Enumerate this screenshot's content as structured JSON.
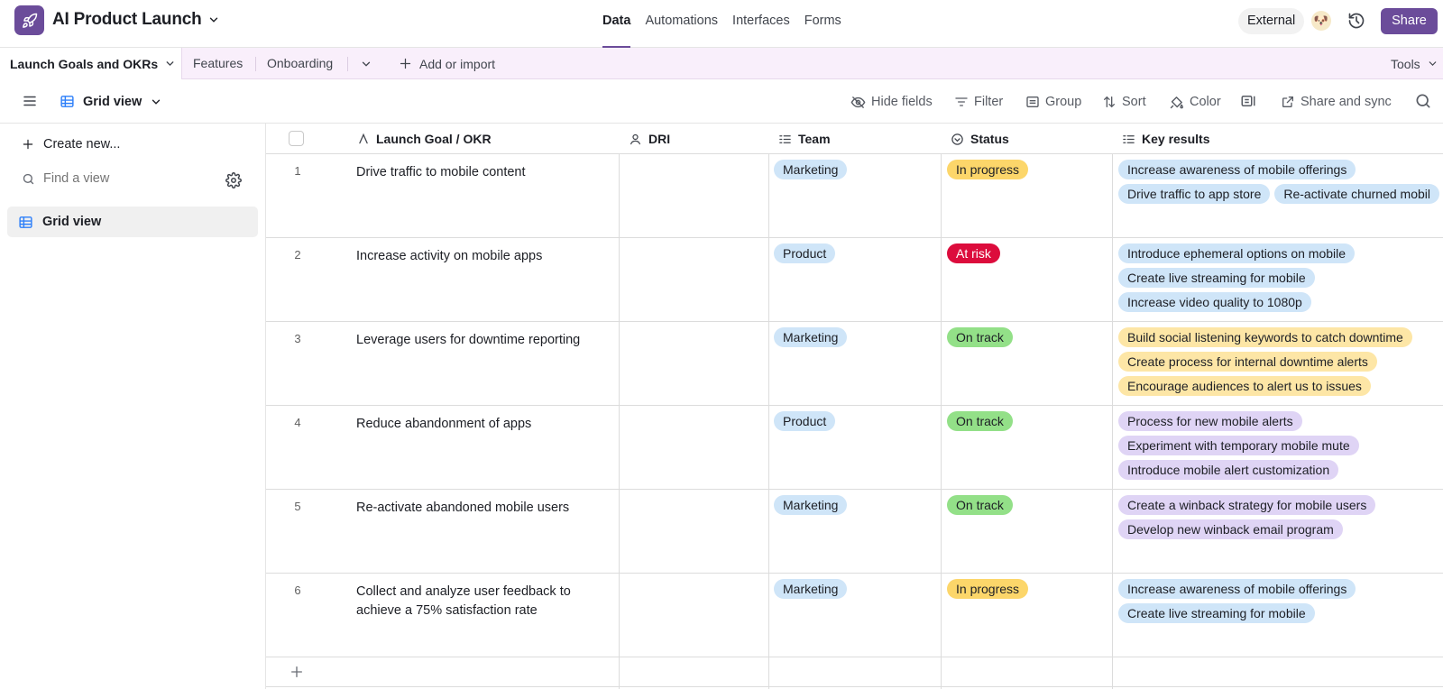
{
  "app": {
    "title": "AI Product Launch",
    "accent_color": "#6b4c9a",
    "nav_tabs": [
      {
        "label": "Data",
        "active": true
      },
      {
        "label": "Automations",
        "active": false
      },
      {
        "label": "Interfaces",
        "active": false
      },
      {
        "label": "Forms",
        "active": false
      }
    ],
    "external_label": "External",
    "share_label": "Share",
    "avatar_emoji": "🐶"
  },
  "tables": {
    "active": "Launch Goals and OKRs",
    "others": [
      "Features",
      "Onboarding"
    ],
    "add_import_label": "Add or import",
    "tools_label": "Tools"
  },
  "viewbar": {
    "view_name": "Grid view",
    "tools": {
      "hide_fields": "Hide fields",
      "filter": "Filter",
      "group": "Group",
      "sort": "Sort",
      "color": "Color",
      "share_sync": "Share and sync"
    }
  },
  "sidebar": {
    "create_new": "Create new...",
    "find_placeholder": "Find a view",
    "views": [
      "Grid view"
    ]
  },
  "grid": {
    "columns": {
      "goal": "Launch Goal / OKR",
      "dri": "DRI",
      "team": "Team",
      "status": "Status",
      "key_results": "Key results"
    },
    "status_colors": {
      "In progress": "#fcd66a",
      "At risk": "#dc0c3c",
      "On track": "#93e088"
    },
    "kr_colors": [
      "#cfe5f8",
      "#fde6a6",
      "#dfd4f5"
    ],
    "rows": [
      {
        "num": "1",
        "goal": "Drive traffic to mobile content",
        "dri": "",
        "team": "Marketing",
        "status": "In progress",
        "kr_color": 0,
        "key_results": [
          [
            "Increase awareness of mobile offerings"
          ],
          [
            "Drive traffic to app store",
            "Re-activate churned mobil"
          ]
        ]
      },
      {
        "num": "2",
        "goal": "Increase activity on mobile apps",
        "dri": "",
        "team": "Product",
        "status": "At risk",
        "kr_color": 0,
        "key_results": [
          [
            "Introduce ephemeral options on mobile"
          ],
          [
            "Create live streaming for mobile"
          ],
          [
            "Increase video quality to 1080p"
          ]
        ]
      },
      {
        "num": "3",
        "goal": "Leverage users for downtime reporting",
        "dri": "",
        "team": "Marketing",
        "status": "On track",
        "kr_color": 1,
        "key_results": [
          [
            "Build social listening keywords to catch downtime"
          ],
          [
            "Create process for internal downtime alerts"
          ],
          [
            "Encourage audiences to alert us to issues"
          ]
        ]
      },
      {
        "num": "4",
        "goal": "Reduce abandonment of apps",
        "dri": "",
        "team": "Product",
        "status": "On track",
        "kr_color": 2,
        "key_results": [
          [
            "Process for new mobile alerts"
          ],
          [
            "Experiment with temporary mobile mute"
          ],
          [
            "Introduce mobile alert customization"
          ]
        ]
      },
      {
        "num": "5",
        "goal": "Re-activate abandoned mobile users",
        "dri": "",
        "team": "Marketing",
        "status": "On track",
        "kr_color": 2,
        "key_results": [
          [
            "Create a winback strategy for mobile users"
          ],
          [
            "Develop new winback email program"
          ]
        ]
      },
      {
        "num": "6",
        "goal": "Collect and analyze user feedback to achieve a 75% satisfaction rate",
        "dri": "",
        "team": "Marketing",
        "status": "In progress",
        "kr_color": 0,
        "key_results": [
          [
            "Increase awareness of mobile offerings"
          ],
          [
            "Create live streaming for mobile"
          ]
        ]
      }
    ]
  }
}
